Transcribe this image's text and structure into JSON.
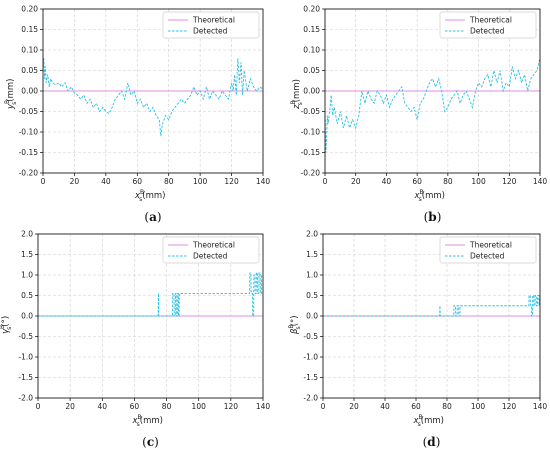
{
  "colors": {
    "theoretical": "#e58ee6",
    "detected": "#27c0e2",
    "grid": "#cfcfcf"
  },
  "chart_data": [
    {
      "type": "line",
      "panel_caption": "(a)",
      "ylabel": {
        "base": "y",
        "sup": "B",
        "sub": "s",
        "unit": "(mm)"
      },
      "xlabel": {
        "base": "x",
        "sup": "B",
        "sub": "s",
        "unit": "(mm)"
      },
      "xlim": [
        0,
        140
      ],
      "ylim": [
        -0.2,
        0.2
      ],
      "xticks": [
        0,
        20,
        40,
        60,
        80,
        100,
        120,
        140
      ],
      "yticks": [
        "-0.20",
        "-0.15",
        "-0.10",
        "-0.05",
        "0.00",
        "0.05",
        "0.10",
        "0.15",
        "0.20"
      ],
      "ytick_values": [
        -0.2,
        -0.15,
        -0.1,
        -0.05,
        0,
        0.05,
        0.1,
        0.15,
        0.2
      ],
      "grid": true,
      "legend_position": "top-right",
      "series": [
        {
          "name": "Theoretical",
          "style": "solid",
          "x": [
            0,
            140
          ],
          "y": [
            0,
            0
          ]
        },
        {
          "name": "Detected",
          "style": "dashed",
          "x": [
            0,
            0.5,
            1,
            1.5,
            2,
            3,
            4,
            5,
            6,
            8,
            10,
            12,
            14,
            16,
            18,
            20,
            22,
            24,
            26,
            28,
            30,
            32,
            34,
            36,
            38,
            40,
            42,
            44,
            46,
            48,
            50,
            52,
            54,
            56,
            58,
            60,
            62,
            64,
            66,
            68,
            70,
            72,
            74,
            75,
            76,
            78,
            80,
            82,
            84,
            86,
            88,
            90,
            92,
            94,
            96,
            98,
            100,
            102,
            104,
            106,
            108,
            110,
            112,
            114,
            116,
            118,
            120,
            121,
            122,
            123,
            124,
            125,
            126,
            127,
            128,
            130,
            132,
            134,
            136,
            138,
            140
          ],
          "y": [
            0.05,
            0.08,
            0.03,
            0.06,
            0.02,
            0.04,
            0.01,
            0.03,
            0.02,
            0.015,
            0.02,
            0.01,
            0.02,
            0.0,
            0.01,
            -0.005,
            -0.01,
            -0.02,
            -0.01,
            -0.03,
            -0.02,
            -0.04,
            -0.03,
            -0.05,
            -0.04,
            -0.05,
            -0.055,
            -0.04,
            -0.02,
            -0.01,
            0.0,
            -0.02,
            0.02,
            -0.01,
            0.0,
            -0.03,
            -0.02,
            -0.04,
            -0.03,
            -0.05,
            -0.04,
            -0.06,
            -0.07,
            -0.11,
            -0.08,
            -0.06,
            -0.07,
            -0.05,
            -0.04,
            -0.03,
            -0.02,
            -0.03,
            -0.02,
            -0.01,
            0.01,
            -0.01,
            0.0,
            -0.02,
            0.01,
            -0.02,
            0.0,
            -0.01,
            -0.02,
            0.0,
            -0.01,
            -0.02,
            0.02,
            0.0,
            0.04,
            -0.01,
            0.08,
            0.02,
            0.07,
            -0.01,
            0.05,
            0.0,
            0.03,
            0.01,
            0.0,
            0.01,
            0.005
          ]
        }
      ]
    },
    {
      "type": "line",
      "panel_caption": "(b)",
      "ylabel": {
        "base": "z",
        "sup": "B",
        "sub": "s",
        "unit": "(mm)"
      },
      "xlabel": {
        "base": "x",
        "sup": "B",
        "sub": "s",
        "unit": "(mm)"
      },
      "xlim": [
        0,
        140
      ],
      "ylim": [
        -0.2,
        0.2
      ],
      "xticks": [
        0,
        20,
        40,
        60,
        80,
        100,
        120,
        140
      ],
      "yticks": [
        "-0.20",
        "-0.15",
        "-0.10",
        "-0.05",
        "0.00",
        "0.05",
        "0.10",
        "0.15",
        "0.20"
      ],
      "ytick_values": [
        -0.2,
        -0.15,
        -0.1,
        -0.05,
        0,
        0.05,
        0.1,
        0.15,
        0.2
      ],
      "grid": true,
      "legend_position": "top-right",
      "series": [
        {
          "name": "Theoretical",
          "style": "solid",
          "x": [
            0,
            140
          ],
          "y": [
            0,
            0
          ]
        },
        {
          "name": "Detected",
          "style": "dashed",
          "x": [
            0,
            0.5,
            1,
            1.5,
            2,
            3,
            4,
            5,
            6,
            8,
            10,
            12,
            14,
            16,
            18,
            20,
            22,
            24,
            26,
            28,
            30,
            32,
            34,
            36,
            38,
            40,
            42,
            44,
            46,
            48,
            50,
            52,
            54,
            56,
            58,
            60,
            62,
            64,
            66,
            68,
            70,
            72,
            74,
            76,
            78,
            80,
            82,
            84,
            86,
            88,
            90,
            92,
            94,
            96,
            98,
            100,
            102,
            104,
            106,
            108,
            110,
            112,
            114,
            116,
            118,
            120,
            122,
            124,
            126,
            128,
            130,
            132,
            134,
            136,
            138,
            140
          ],
          "y": [
            -0.05,
            -0.15,
            -0.12,
            -0.06,
            -0.08,
            -0.05,
            -0.01,
            -0.06,
            -0.04,
            -0.08,
            -0.05,
            -0.09,
            -0.06,
            -0.09,
            -0.07,
            -0.09,
            -0.06,
            0.0,
            -0.03,
            0.0,
            -0.02,
            -0.03,
            0.0,
            -0.01,
            -0.03,
            -0.01,
            -0.04,
            -0.02,
            -0.01,
            0.0,
            0.01,
            -0.03,
            -0.04,
            -0.05,
            -0.04,
            -0.07,
            -0.03,
            -0.02,
            0.0,
            0.02,
            0.03,
            0.01,
            0.03,
            0.0,
            -0.05,
            -0.04,
            -0.02,
            -0.01,
            0.0,
            -0.03,
            -0.01,
            0.0,
            -0.02,
            -0.04,
            0.0,
            0.02,
            0.01,
            0.03,
            0.04,
            0.01,
            0.05,
            0.02,
            0.05,
            0.0,
            0.02,
            0.01,
            0.06,
            0.03,
            0.05,
            0.02,
            0.04,
            0.0,
            0.03,
            0.04,
            0.05,
            0.08
          ]
        }
      ]
    },
    {
      "type": "line",
      "panel_caption": "(c)",
      "ylabel": {
        "base": "γ",
        "sup": "B",
        "sub": "s",
        "unit": "(°)"
      },
      "xlabel": {
        "base": "x",
        "sup": "B",
        "sub": "s",
        "unit": "(mm)"
      },
      "xlim": [
        0,
        140
      ],
      "ylim": [
        -2.0,
        2.0
      ],
      "xticks": [
        0,
        20,
        40,
        60,
        80,
        100,
        120,
        140
      ],
      "yticks": [
        "-2.0",
        "-1.5",
        "-1.0",
        "-0.5",
        "0.0",
        "0.5",
        "1.0",
        "1.5",
        "2.0"
      ],
      "ytick_values": [
        -2,
        -1.5,
        -1,
        -0.5,
        0,
        0.5,
        1,
        1.5,
        2
      ],
      "grid": true,
      "legend_position": "top-right",
      "series": [
        {
          "name": "Theoretical",
          "style": "solid",
          "x": [
            0,
            140
          ],
          "y": [
            0,
            0
          ]
        },
        {
          "name": "Detected",
          "style": "dashed",
          "x": [
            0,
            74.8,
            74.9,
            75.0,
            75.1,
            83.7,
            83.8,
            84.6,
            84.7,
            85.4,
            85.5,
            86.0,
            86.1,
            86.8,
            86.9,
            87.3,
            87.4,
            87.8,
            87.9,
            131.7,
            131.8,
            132.5,
            132.6,
            133.5,
            133.6,
            134.2,
            134.3,
            135.0,
            135.1,
            135.8,
            135.9,
            136.6,
            136.7,
            137.4,
            137.5,
            138.2,
            138.3,
            139.0,
            139.1,
            140
          ],
          "y": [
            0,
            0,
            0.55,
            0.55,
            0,
            0,
            0.55,
            0.55,
            0,
            0,
            0.55,
            0.55,
            0,
            0,
            0.55,
            0.55,
            0,
            0,
            0.55,
            0.55,
            1.05,
            1.05,
            0.55,
            0.55,
            0,
            0,
            1.0,
            1.0,
            0.55,
            0.55,
            1.05,
            1.05,
            0.55,
            0.55,
            1.05,
            1.05,
            0.55,
            0.55,
            1.0,
            1.0
          ]
        }
      ]
    },
    {
      "type": "line",
      "panel_caption": "(d)",
      "ylabel": {
        "base": "β",
        "sup": "B",
        "sub": "s",
        "unit": "(°)"
      },
      "xlabel": {
        "base": "x",
        "sup": "B",
        "sub": "s",
        "unit": "(mm)"
      },
      "xlim": [
        0,
        140
      ],
      "ylim": [
        -2.0,
        2.0
      ],
      "xticks": [
        0,
        20,
        40,
        60,
        80,
        100,
        120,
        140
      ],
      "yticks": [
        "-2.0",
        "-1.5",
        "-1.0",
        "-0.5",
        "0.0",
        "0.5",
        "1.0",
        "1.5",
        "2.0"
      ],
      "ytick_values": [
        -2,
        -1.5,
        -1,
        -0.5,
        0,
        0.5,
        1,
        1.5,
        2
      ],
      "grid": true,
      "legend_position": "top-right",
      "series": [
        {
          "name": "Theoretical",
          "style": "solid",
          "x": [
            0,
            140
          ],
          "y": [
            0,
            0
          ]
        },
        {
          "name": "Detected",
          "style": "dashed",
          "x": [
            0,
            75.3,
            75.4,
            75.5,
            75.6,
            84.4,
            84.5,
            85.5,
            85.6,
            86.5,
            86.6,
            87.5,
            87.6,
            88.3,
            88.4,
            132.8,
            132.9,
            133.7,
            133.8,
            134.4,
            134.5,
            135.2,
            135.3,
            136.0,
            136.1,
            136.8,
            136.9,
            137.6,
            137.7,
            138.4,
            138.5,
            139.3,
            139.4,
            140
          ],
          "y": [
            0,
            0,
            0.25,
            0.25,
            0,
            0,
            0.25,
            0.25,
            0,
            0,
            0.25,
            0.25,
            0,
            0,
            0.25,
            0.25,
            0.5,
            0.5,
            0.25,
            0.25,
            0,
            0,
            0.5,
            0.5,
            0.25,
            0.25,
            0.5,
            0.5,
            0.25,
            0.25,
            0.5,
            0.5,
            0.25,
            0.5
          ]
        }
      ]
    }
  ]
}
